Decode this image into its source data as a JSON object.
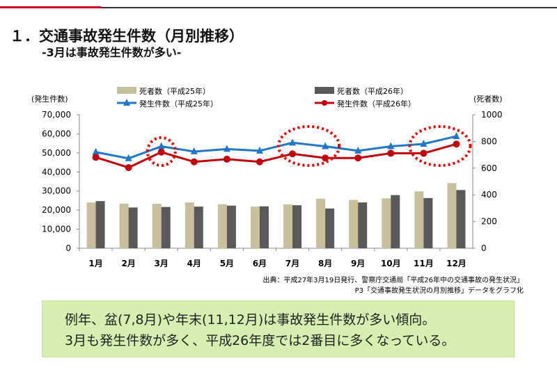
{
  "header": {
    "title": "１．交通事故発生件数（月別推移）",
    "subtitle": "-3月は事故発生件数が多い-"
  },
  "colors": {
    "accent_red": "#d0021b",
    "beige": "#c8bf9c",
    "dark": "#595959",
    "blue": "#1f77c8",
    "red": "#c0000a"
  },
  "chart_data": {
    "type": "bar+line",
    "categories": [
      "1月",
      "2月",
      "3月",
      "4月",
      "5月",
      "6月",
      "7月",
      "8月",
      "9月",
      "10月",
      "11月",
      "12月"
    ],
    "left_axis": {
      "label": "(発生件数)",
      "range": [
        0,
        70000
      ],
      "ticks": [
        "0",
        "10,000",
        "20,000",
        "30,000",
        "40,000",
        "50,000",
        "60,000",
        "70,000"
      ]
    },
    "right_axis": {
      "label": "(死者数)",
      "range": [
        0,
        1000
      ],
      "ticks": [
        "0",
        "200",
        "400",
        "600",
        "800",
        "1000"
      ]
    },
    "series": [
      {
        "name": "死者数（平成25年）",
        "type": "bar",
        "axis": "right",
        "color": "#c8bf9c",
        "values": [
          343,
          334,
          333,
          343,
          329,
          312,
          329,
          371,
          362,
          374,
          426,
          488
        ]
      },
      {
        "name": "死者数（平成26年）",
        "type": "bar",
        "axis": "right",
        "color": "#595959",
        "values": [
          353,
          305,
          309,
          312,
          319,
          314,
          322,
          298,
          343,
          398,
          376,
          436
        ]
      },
      {
        "name": "発生件数（平成25年）",
        "type": "line",
        "axis": "left",
        "color": "#1f77c8",
        "marker": "triangle",
        "values": [
          50400,
          47100,
          53400,
          50700,
          52000,
          51100,
          55300,
          53400,
          51100,
          53400,
          54700,
          58700
        ]
      },
      {
        "name": "発生件数（平成26年）",
        "type": "line",
        "axis": "left",
        "color": "#c0000a",
        "marker": "circle",
        "values": [
          47700,
          42300,
          50400,
          45300,
          46700,
          45300,
          49500,
          47300,
          47300,
          49800,
          49800,
          54600
        ]
      }
    ],
    "highlights": [
      "3月",
      "7月-8月",
      "11月-12月"
    ],
    "source": [
      "出典：平成27年3月19日発行、警察庁交通局「平成26年中の交通事故の発生状況」",
      "P3「交通事故発生状況の月別推移」データをグラフ化"
    ]
  },
  "note": {
    "line1": "例年、盆(7,8月)や年末(11,12月)は事故発生件数が多い傾向。",
    "line2": "3月も発生件数が多く、平成26年度では2番目に多くなっている。"
  }
}
